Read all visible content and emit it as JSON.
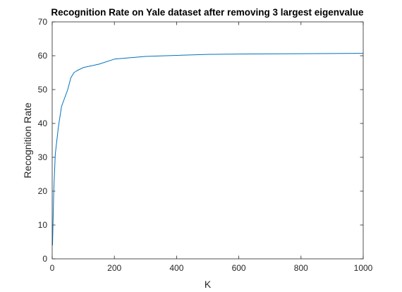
{
  "chart_data": {
    "type": "line",
    "title": "Recognition Rate on Yale dataset after removing 3 largest eigenvalue",
    "xlabel": "K",
    "ylabel": "Recognition Rate",
    "xlim": [
      0,
      1000
    ],
    "ylim": [
      0,
      70
    ],
    "xticks": [
      0,
      200,
      400,
      600,
      800,
      1000
    ],
    "yticks": [
      0,
      10,
      20,
      30,
      40,
      50,
      60,
      70
    ],
    "grid": false,
    "legend": "none",
    "series": [
      {
        "color": "#0072bd",
        "x": [
          1,
          5,
          10,
          20,
          30,
          40,
          50,
          60,
          70,
          80,
          100,
          150,
          200,
          300,
          400,
          500,
          600,
          700,
          800,
          900,
          1000
        ],
        "y": [
          4,
          20,
          31,
          39,
          45,
          47.5,
          50,
          53.5,
          55,
          55.6,
          56.5,
          57.5,
          59,
          59.8,
          60.1,
          60.4,
          60.5,
          60.55,
          60.6,
          60.65,
          60.7
        ]
      }
    ]
  }
}
